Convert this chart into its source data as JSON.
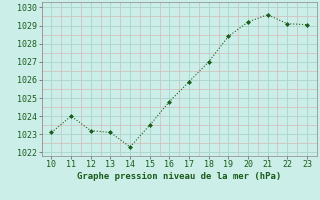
{
  "x": [
    10,
    11,
    12,
    13,
    14,
    15,
    16,
    17,
    18,
    19,
    20,
    21,
    22,
    23
  ],
  "y": [
    1023.1,
    1024.0,
    1023.2,
    1023.1,
    1022.3,
    1023.5,
    1024.8,
    1025.9,
    1027.0,
    1028.4,
    1029.2,
    1029.6,
    1029.1,
    1029.05
  ],
  "xlim": [
    9.5,
    23.5
  ],
  "ylim": [
    1021.8,
    1030.3
  ],
  "yticks": [
    1022,
    1023,
    1024,
    1025,
    1026,
    1027,
    1028,
    1029,
    1030
  ],
  "xticks": [
    10,
    11,
    12,
    13,
    14,
    15,
    16,
    17,
    18,
    19,
    20,
    21,
    22,
    23
  ],
  "line_color": "#1a5c1a",
  "marker_color": "#1a5c1a",
  "bg_color": "#cceee8",
  "grid_color_major": "#aad4cc",
  "grid_color_minor": "#d8b8b8",
  "xlabel": "Graphe pression niveau de la mer (hPa)",
  "xlabel_fontsize": 6.5,
  "tick_fontsize": 6.0
}
